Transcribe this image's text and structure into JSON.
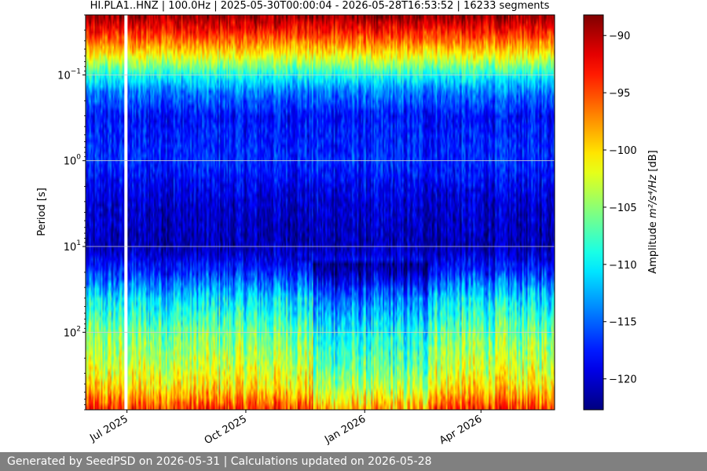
{
  "chart_data": {
    "type": "heatmap",
    "title": "HI.PLA1..HNZ | 100.0Hz | 2025-05-30T00:00:04 - 2026-05-28T16:53:52 | 16233 segments",
    "x": {
      "range": [
        "2025-05-30",
        "2026-05-28"
      ],
      "ticks": [
        {
          "date": "2025-07-01",
          "label": "Jul 2025"
        },
        {
          "date": "2025-10-01",
          "label": "Oct 2025"
        },
        {
          "date": "2026-01-01",
          "label": "Jan 2026"
        },
        {
          "date": "2026-04-01",
          "label": "Apr 2026"
        }
      ]
    },
    "y": {
      "label": "Period [s]",
      "scale": "log",
      "inverted": true,
      "range": [
        0.02,
        800
      ],
      "ticks": [
        {
          "value": 0.1,
          "base": "10",
          "exp": "−1"
        },
        {
          "value": 1,
          "base": "10",
          "exp": "0"
        },
        {
          "value": 10,
          "base": "10",
          "exp": "1"
        },
        {
          "value": 100,
          "base": "10",
          "exp": "2"
        }
      ]
    },
    "colorbar": {
      "label_prefix": "Amplitude ",
      "label_unit": "m²/s⁴/Hz",
      "label_suffix": " [dB]",
      "colormap": "jet",
      "range": [
        -122.7,
        -88.2
      ],
      "ticks": [
        -90,
        -95,
        -100,
        -105,
        -110,
        -115,
        -120
      ],
      "tick_labels": [
        "−90",
        "−95",
        "−100",
        "−105",
        "−110",
        "−115",
        "−120"
      ]
    },
    "profile": [
      {
        "period": 0.02,
        "db": -89
      },
      {
        "period": 0.03,
        "db": -93
      },
      {
        "period": 0.05,
        "db": -99
      },
      {
        "period": 0.1,
        "db": -109
      },
      {
        "period": 0.15,
        "db": -114
      },
      {
        "period": 0.3,
        "db": -118
      },
      {
        "period": 1,
        "db": -117
      },
      {
        "period": 3,
        "db": -120
      },
      {
        "period": 10,
        "db": -121
      },
      {
        "period": 20,
        "db": -117
      },
      {
        "period": 40,
        "db": -111
      },
      {
        "period": 100,
        "db": -106
      },
      {
        "period": 250,
        "db": -103
      },
      {
        "period": 450,
        "db": -100
      },
      {
        "period": 800,
        "db": -94
      }
    ],
    "gaps": [
      {
        "start": "2025-06-29",
        "end": "2025-07-01"
      }
    ],
    "grid": true
  },
  "footer": {
    "text": "Generated by SeedPSD on 2026-05-31 | Calculations updated on 2026-05-28"
  }
}
